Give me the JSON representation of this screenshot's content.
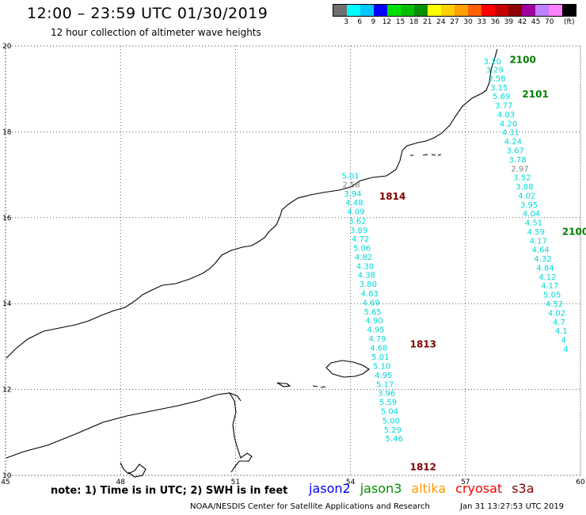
{
  "header": {
    "title": "12:00 – 23:59 UTC 01/30/2019",
    "subtitle": "12 hour collection of altimeter wave heights"
  },
  "legend": {
    "colors": [
      "#707070",
      "#00ffff",
      "#00c8ff",
      "#0000ff",
      "#00e000",
      "#00c000",
      "#009000",
      "#ffff00",
      "#ffd000",
      "#ffa000",
      "#ff6000",
      "#ff0000",
      "#c80000",
      "#900000",
      "#a000a0",
      "#c080ff",
      "#ff80ff",
      "#000000"
    ],
    "labels": [
      "3",
      "6",
      "9",
      "12",
      "15",
      "18",
      "21",
      "24",
      "27",
      "30",
      "33",
      "36",
      "39",
      "42",
      "45",
      "70"
    ],
    "unit": "(ft)"
  },
  "axes": {
    "lon_labels": [
      "45",
      "48",
      "51",
      "54",
      "57",
      "60"
    ],
    "lat_labels": [
      "10",
      "12",
      "14",
      "16",
      "18",
      "20"
    ]
  },
  "tracks": [
    {
      "id": "track-1814",
      "label": "1814",
      "color": "#800000",
      "points": [
        {
          "lon": 54.0,
          "lat": 16.91,
          "v": "5.01",
          "c": "cyan"
        },
        {
          "lon": 54.02,
          "lat": 16.71,
          "v": "2.58",
          "c": "gray"
        },
        {
          "lon": 54.06,
          "lat": 16.49,
          "v": "3.94",
          "c": "cyan"
        },
        {
          "lon": 54.1,
          "lat": 16.29,
          "v": "4.48",
          "c": "cyan"
        },
        {
          "lon": 54.14,
          "lat": 16.08,
          "v": "4.09",
          "c": "cyan"
        },
        {
          "lon": 54.18,
          "lat": 15.86,
          "v": "3.62",
          "c": "cyan"
        },
        {
          "lon": 54.22,
          "lat": 15.65,
          "v": "3.89",
          "c": "cyan"
        },
        {
          "lon": 54.26,
          "lat": 15.44,
          "v": "4.72",
          "c": "cyan"
        },
        {
          "lon": 54.3,
          "lat": 15.23,
          "v": "5.06",
          "c": "cyan"
        },
        {
          "lon": 54.34,
          "lat": 15.02,
          "v": "4.82",
          "c": "cyan"
        },
        {
          "lon": 54.38,
          "lat": 14.81,
          "v": "4.30",
          "c": "cyan"
        },
        {
          "lon": 54.42,
          "lat": 14.6,
          "v": "4.38",
          "c": "cyan"
        },
        {
          "lon": 54.46,
          "lat": 14.39,
          "v": "3.80",
          "c": "cyan"
        },
        {
          "lon": 54.5,
          "lat": 14.17,
          "v": "4.63",
          "c": "cyan"
        },
        {
          "lon": 54.54,
          "lat": 13.96,
          "v": "4.69",
          "c": "cyan"
        },
        {
          "lon": 54.58,
          "lat": 13.75,
          "v": "5.65",
          "c": "cyan"
        },
        {
          "lon": 54.62,
          "lat": 13.54,
          "v": "4.90",
          "c": "cyan"
        },
        {
          "lon": 54.66,
          "lat": 13.33,
          "v": "4.95",
          "c": "cyan"
        },
        {
          "lon": 54.7,
          "lat": 13.12,
          "v": "4.79",
          "c": "cyan"
        },
        {
          "lon": 54.74,
          "lat": 12.91,
          "v": "4.68",
          "c": "cyan"
        },
        {
          "lon": 54.78,
          "lat": 12.69,
          "v": "5.01",
          "c": "cyan"
        },
        {
          "lon": 54.82,
          "lat": 12.48,
          "v": "5.10",
          "c": "cyan"
        },
        {
          "lon": 54.86,
          "lat": 12.27,
          "v": "4.95",
          "c": "cyan"
        },
        {
          "lon": 54.9,
          "lat": 12.06,
          "v": "5.17",
          "c": "cyan"
        },
        {
          "lon": 54.94,
          "lat": 11.85,
          "v": "3.96",
          "c": "cyan"
        },
        {
          "lon": 54.98,
          "lat": 11.64,
          "v": "5.59",
          "c": "cyan"
        },
        {
          "lon": 55.02,
          "lat": 11.43,
          "v": "5.04",
          "c": "cyan"
        },
        {
          "lon": 55.06,
          "lat": 11.21,
          "v": "5.00",
          "c": "cyan"
        },
        {
          "lon": 55.1,
          "lat": 11.0,
          "v": "5.29",
          "c": "cyan"
        },
        {
          "lon": 55.14,
          "lat": 10.79,
          "v": "5.46",
          "c": "cyan"
        }
      ]
    },
    {
      "id": "track-2100",
      "label": "2100",
      "color": "#008000",
      "points": [
        {
          "lon": 57.7,
          "lat": 19.58,
          "v": "3.20",
          "c": "cyan"
        },
        {
          "lon": 57.76,
          "lat": 19.38,
          "v": "3.29",
          "c": "cyan"
        },
        {
          "lon": 57.82,
          "lat": 19.18,
          "v": "3.58",
          "c": "cyan"
        },
        {
          "lon": 57.88,
          "lat": 18.97,
          "v": "3.15",
          "c": "cyan"
        },
        {
          "lon": 57.94,
          "lat": 18.76,
          "v": "5.69",
          "c": "cyan"
        },
        {
          "lon": 58.0,
          "lat": 18.55,
          "v": "3.77",
          "c": "cyan"
        },
        {
          "lon": 58.06,
          "lat": 18.34,
          "v": "4.03",
          "c": "cyan"
        },
        {
          "lon": 58.12,
          "lat": 18.13,
          "v": "4.20",
          "c": "cyan"
        },
        {
          "lon": 58.18,
          "lat": 17.92,
          "v": "4.31",
          "c": "cyan"
        },
        {
          "lon": 58.24,
          "lat": 17.71,
          "v": "4.24",
          "c": "cyan"
        },
        {
          "lon": 58.3,
          "lat": 17.5,
          "v": "3.67",
          "c": "cyan"
        },
        {
          "lon": 58.36,
          "lat": 17.29,
          "v": "3.78",
          "c": "cyan"
        },
        {
          "lon": 58.42,
          "lat": 17.08,
          "v": "2.97",
          "c": "gray"
        },
        {
          "lon": 58.48,
          "lat": 16.87,
          "v": "3.52",
          "c": "cyan"
        },
        {
          "lon": 58.54,
          "lat": 16.66,
          "v": "3.88",
          "c": "cyan"
        },
        {
          "lon": 58.6,
          "lat": 16.45,
          "v": "4.02",
          "c": "cyan"
        },
        {
          "lon": 58.66,
          "lat": 16.24,
          "v": "3.95",
          "c": "cyan"
        },
        {
          "lon": 58.72,
          "lat": 16.03,
          "v": "4.04",
          "c": "cyan"
        },
        {
          "lon": 58.78,
          "lat": 15.82,
          "v": "4.51",
          "c": "cyan"
        },
        {
          "lon": 58.84,
          "lat": 15.61,
          "v": "4.59",
          "c": "cyan"
        },
        {
          "lon": 58.9,
          "lat": 15.4,
          "v": "4.17",
          "c": "cyan"
        },
        {
          "lon": 58.96,
          "lat": 15.19,
          "v": "4.64",
          "c": "cyan"
        },
        {
          "lon": 59.02,
          "lat": 14.98,
          "v": "4.32",
          "c": "cyan"
        },
        {
          "lon": 59.08,
          "lat": 14.77,
          "v": "4.84",
          "c": "cyan"
        },
        {
          "lon": 59.14,
          "lat": 14.56,
          "v": "4.12",
          "c": "cyan"
        },
        {
          "lon": 59.2,
          "lat": 14.35,
          "v": "4.17",
          "c": "cyan"
        },
        {
          "lon": 59.26,
          "lat": 14.14,
          "v": "5.05",
          "c": "cyan"
        },
        {
          "lon": 59.32,
          "lat": 13.93,
          "v": "4.52",
          "c": "cyan"
        },
        {
          "lon": 59.38,
          "lat": 13.72,
          "v": "4.02",
          "c": "cyan"
        },
        {
          "lon": 59.44,
          "lat": 13.51,
          "v": "4.7",
          "c": "cyan"
        },
        {
          "lon": 59.5,
          "lat": 13.3,
          "v": "4.1",
          "c": "cyan"
        },
        {
          "lon": 59.56,
          "lat": 13.09,
          "v": "4",
          "c": "cyan"
        },
        {
          "lon": 59.62,
          "lat": 12.88,
          "v": "4",
          "c": "cyan"
        }
      ]
    }
  ],
  "pass_labels": [
    {
      "text": "2100",
      "color": "#008000",
      "lon": 58.15,
      "lat": 19.6
    },
    {
      "text": "2101",
      "color": "#008000",
      "lon": 58.48,
      "lat": 18.8
    },
    {
      "text": "2100",
      "color": "#008000",
      "lon": 59.52,
      "lat": 15.6
    },
    {
      "text": "1814",
      "color": "#800000",
      "lon": 54.75,
      "lat": 16.42
    },
    {
      "text": "1813",
      "color": "#800000",
      "lon": 55.55,
      "lat": 12.98
    },
    {
      "text": "1812",
      "color": "#800000",
      "lon": 55.55,
      "lat": 10.12
    }
  ],
  "footer": {
    "note": "note: 1) Time is in UTC; 2) SWH is in feet",
    "satellites": [
      {
        "name": "jason2",
        "color": "#0000ff"
      },
      {
        "name": "jason3",
        "color": "#009000"
      },
      {
        "name": "altika",
        "color": "#ff9900"
      },
      {
        "name": "cryosat",
        "color": "#ff0000"
      },
      {
        "name": "s3a",
        "color": "#800000"
      }
    ],
    "credit": "NOAA/NESDIS Center for Satellite Applications and Research",
    "timestamp": "Jan 31 13:27:53 UTC 2019"
  }
}
